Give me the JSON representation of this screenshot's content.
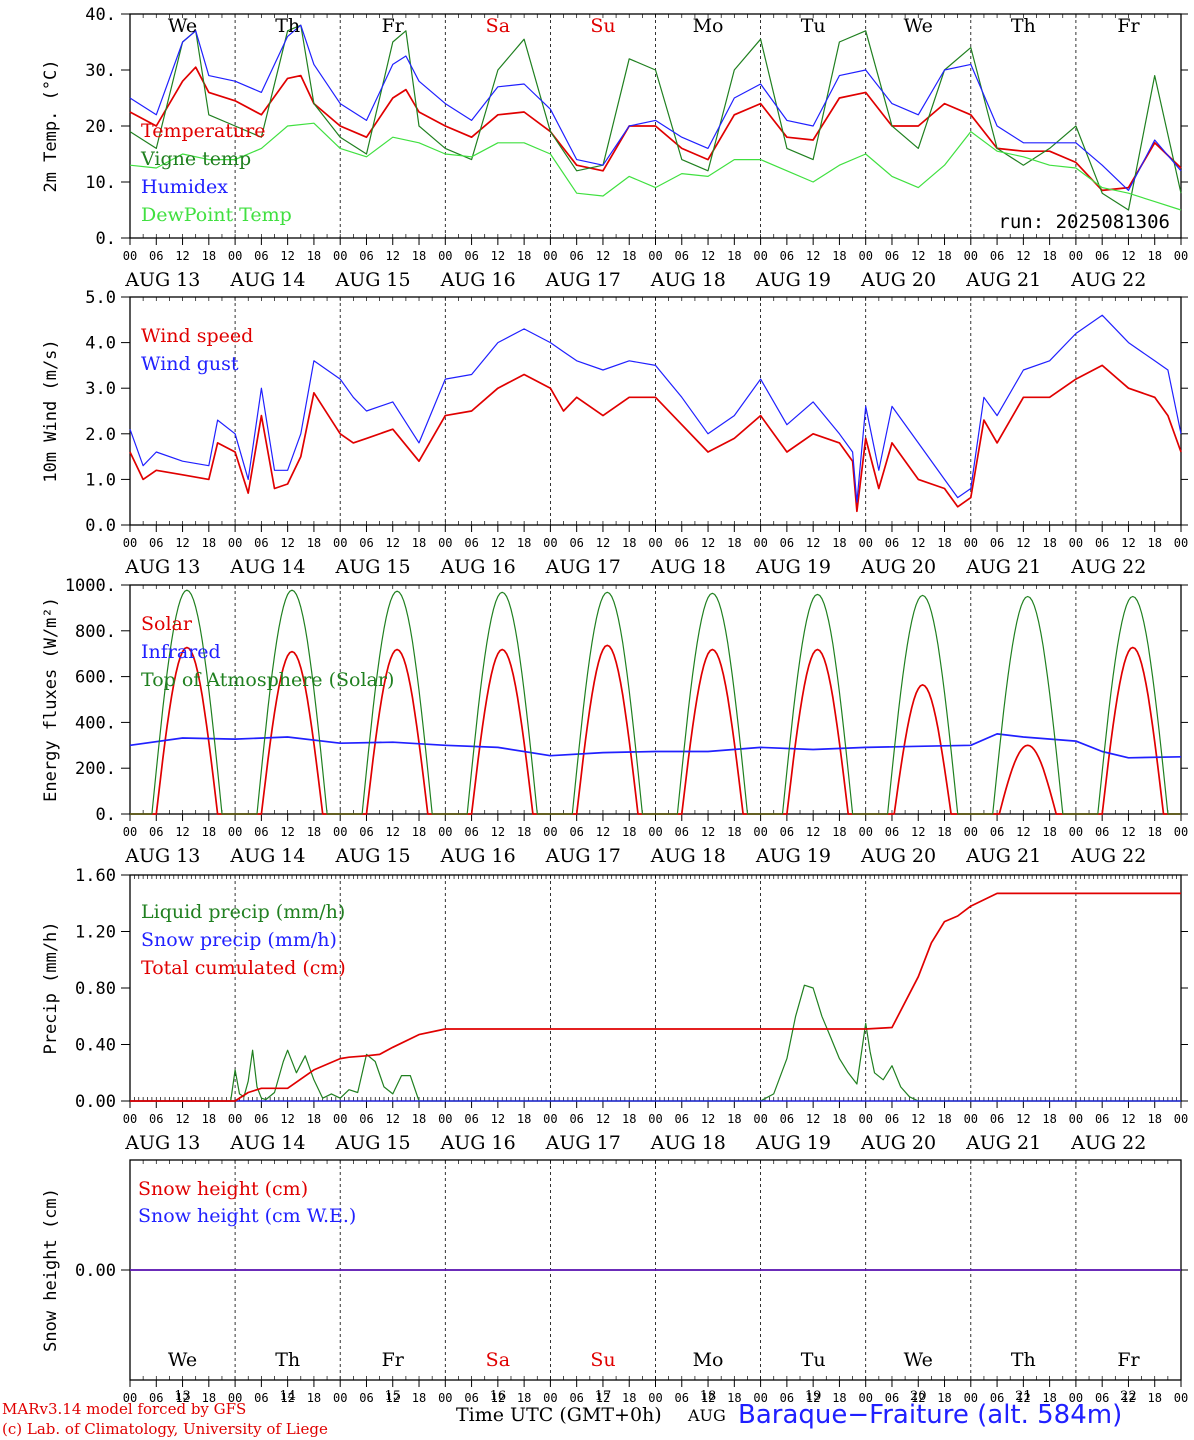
{
  "run_label": "run: 2025081306",
  "footer": {
    "model": "MARv3.14 model forced by GFS",
    "credit": "(c) Lab. of Climatology, University of Liege",
    "time_label": "Time UTC (GMT+0h)",
    "month": "AUG",
    "site": "Baraque−Fraiture (alt. 584m)"
  },
  "colors": {
    "red": "#e00000",
    "blue": "#2020ff",
    "green": "#208020",
    "lightgreen": "#40e040",
    "weekend": "#e00000"
  },
  "days": {
    "names": [
      "We",
      "Th",
      "Fr",
      "Sa",
      "Su",
      "Mo",
      "Tu",
      "We",
      "Th",
      "Fr"
    ],
    "weekend": [
      false,
      false,
      false,
      true,
      true,
      false,
      false,
      false,
      false,
      false
    ],
    "dates": [
      "AUG 13",
      "AUG 14",
      "AUG 15",
      "AUG 16",
      "AUG 17",
      "AUG 18",
      "AUG 19",
      "AUG 20",
      "AUG 21",
      "AUG 22"
    ],
    "numbers": [
      "13",
      "14",
      "15",
      "16",
      "17",
      "18",
      "19",
      "20",
      "21",
      "22"
    ],
    "hour_ticks": [
      "00",
      "06",
      "12",
      "18"
    ],
    "final_tick": "00"
  },
  "chart_data": [
    {
      "type": "line",
      "ylabel": "2m Temp. (°C)",
      "ylim": [
        0,
        40
      ],
      "yticks": [
        "0.",
        "10.",
        "20.",
        "30.",
        "40."
      ],
      "x_unit": "hours since AUG 13 00 UTC",
      "series": [
        {
          "name": "Temperature",
          "color": "red",
          "x": [
            0,
            6,
            12,
            15,
            18,
            24,
            30,
            36,
            39,
            42,
            48,
            54,
            60,
            63,
            66,
            72,
            78,
            84,
            90,
            96,
            102,
            108,
            114,
            120,
            126,
            132,
            138,
            144,
            150,
            156,
            162,
            168,
            174,
            180,
            186,
            192,
            198,
            204,
            210,
            216,
            222,
            228,
            234,
            240
          ],
          "y": [
            22.5,
            20,
            28,
            30.5,
            26,
            24.5,
            22,
            28.5,
            29,
            24,
            20,
            18,
            25,
            26.5,
            22.5,
            20,
            18,
            22,
            22.5,
            19,
            13,
            12,
            20,
            20,
            16,
            14,
            22,
            24,
            18,
            17.5,
            25,
            26,
            20,
            20,
            24,
            22,
            16,
            15.5,
            15.5,
            13.5,
            8.5,
            9,
            17,
            12.5
          ]
        },
        {
          "name": "Vigne temp",
          "color": "green",
          "x": [
            0,
            6,
            12,
            15,
            18,
            24,
            30,
            36,
            39,
            42,
            48,
            54,
            60,
            63,
            66,
            72,
            78,
            84,
            90,
            96,
            102,
            108,
            114,
            120,
            126,
            132,
            138,
            144,
            150,
            156,
            162,
            168,
            174,
            180,
            186,
            192,
            198,
            204,
            210,
            216,
            222,
            228,
            234,
            240
          ],
          "y": [
            19,
            16,
            35,
            37,
            22,
            20,
            18,
            37,
            38,
            24,
            18,
            15,
            35,
            37,
            20,
            16,
            14,
            30,
            35.5,
            19,
            12,
            13,
            32,
            30,
            14,
            12,
            30,
            35.5,
            16,
            14,
            35,
            37,
            20,
            16,
            30,
            34,
            16,
            13,
            16,
            20,
            8,
            5,
            29,
            8
          ]
        },
        {
          "name": "Humidex",
          "color": "blue",
          "x": [
            0,
            6,
            12,
            15,
            18,
            24,
            30,
            36,
            39,
            42,
            48,
            54,
            60,
            63,
            66,
            72,
            78,
            84,
            90,
            96,
            102,
            108,
            114,
            120,
            126,
            132,
            138,
            144,
            150,
            156,
            162,
            168,
            174,
            180,
            186,
            192,
            198,
            204,
            210,
            216,
            222,
            228,
            234,
            240
          ],
          "y": [
            25,
            22,
            35,
            37,
            29,
            28,
            26,
            36,
            38,
            31,
            24,
            21,
            31,
            32.5,
            28,
            24,
            21,
            27,
            27.5,
            23,
            14,
            13,
            20,
            21,
            18,
            16,
            25,
            27.5,
            21,
            20,
            29,
            30,
            24,
            22,
            30,
            31,
            20,
            17,
            17,
            17,
            13,
            8.5,
            17.5,
            12
          ]
        },
        {
          "name": "DewPoint Temp",
          "color": "lightgreen",
          "x": [
            0,
            6,
            12,
            18,
            24,
            30,
            36,
            42,
            48,
            54,
            60,
            66,
            72,
            78,
            84,
            90,
            96,
            102,
            108,
            114,
            120,
            126,
            132,
            138,
            144,
            150,
            156,
            162,
            168,
            174,
            180,
            186,
            192,
            198,
            204,
            210,
            216,
            222,
            228,
            234,
            240
          ],
          "y": [
            13,
            12.5,
            15,
            14,
            14,
            16,
            20,
            20.5,
            16,
            14.5,
            18,
            17,
            15,
            14.5,
            17,
            17,
            15,
            8,
            7.5,
            11,
            9,
            11.5,
            11,
            14,
            14,
            12,
            10,
            13,
            15,
            11,
            9,
            13,
            19,
            15.5,
            14.5,
            13,
            12.5,
            9,
            8,
            6.5,
            5
          ]
        }
      ]
    },
    {
      "type": "line",
      "ylabel": "10m Wind (m/s)",
      "ylim": [
        0,
        5
      ],
      "yticks": [
        "0.0",
        "1.0",
        "2.0",
        "3.0",
        "4.0",
        "5.0"
      ],
      "x_unit": "hours since AUG 13 00 UTC",
      "series": [
        {
          "name": "Wind speed",
          "color": "red",
          "x": [
            0,
            3,
            6,
            12,
            18,
            20,
            24,
            27,
            30,
            33,
            36,
            39,
            42,
            48,
            51,
            54,
            60,
            66,
            72,
            78,
            84,
            90,
            96,
            99,
            102,
            108,
            114,
            120,
            126,
            132,
            138,
            144,
            150,
            156,
            162,
            165,
            166,
            168,
            171,
            174,
            180,
            186,
            189,
            192,
            195,
            198,
            204,
            210,
            216,
            222,
            228,
            234,
            237,
            240
          ],
          "y": [
            1.6,
            1.0,
            1.2,
            1.1,
            1.0,
            1.8,
            1.6,
            0.7,
            2.4,
            0.8,
            0.9,
            1.5,
            2.9,
            2.0,
            1.8,
            1.9,
            2.1,
            1.4,
            2.4,
            2.5,
            3.0,
            3.3,
            3.0,
            2.5,
            2.8,
            2.4,
            2.8,
            2.8,
            2.2,
            1.6,
            1.9,
            2.4,
            1.6,
            2.0,
            1.8,
            1.4,
            0.3,
            1.9,
            0.8,
            1.8,
            1.0,
            0.8,
            0.4,
            0.6,
            2.3,
            1.8,
            2.8,
            2.8,
            3.2,
            3.5,
            3.0,
            2.8,
            2.4,
            1.6
          ]
        },
        {
          "name": "Wind gust",
          "color": "blue",
          "x": [
            0,
            3,
            6,
            12,
            18,
            20,
            24,
            27,
            30,
            33,
            36,
            39,
            42,
            48,
            51,
            54,
            60,
            66,
            72,
            78,
            84,
            90,
            96,
            99,
            102,
            108,
            114,
            120,
            126,
            132,
            138,
            144,
            150,
            156,
            162,
            165,
            166,
            168,
            171,
            174,
            180,
            186,
            189,
            192,
            195,
            198,
            204,
            210,
            216,
            222,
            228,
            234,
            237,
            240
          ],
          "y": [
            2.1,
            1.3,
            1.6,
            1.4,
            1.3,
            2.3,
            2.0,
            1.0,
            3.0,
            1.2,
            1.2,
            2.0,
            3.6,
            3.2,
            2.8,
            2.5,
            2.7,
            1.8,
            3.2,
            3.3,
            4.0,
            4.3,
            4.0,
            3.8,
            3.6,
            3.4,
            3.6,
            3.5,
            2.8,
            2.0,
            2.4,
            3.2,
            2.2,
            2.7,
            2.0,
            1.6,
            0.5,
            2.6,
            1.2,
            2.6,
            1.8,
            1.0,
            0.6,
            0.8,
            2.8,
            2.4,
            3.4,
            3.6,
            4.2,
            4.6,
            4.0,
            3.6,
            3.4,
            2.0
          ]
        }
      ]
    },
    {
      "type": "line",
      "ylabel": "Energy fluxes (W/m²)",
      "ylim": [
        0,
        1100
      ],
      "yticks": [
        "0.",
        "200.",
        "400.",
        "600.",
        "800.",
        "1000."
      ],
      "x_unit": "hours since AUG 13 00 UTC",
      "diurnal": true,
      "series": [
        {
          "name": "Solar",
          "color": "red",
          "day_peaks": [
            800,
            780,
            790,
            790,
            810,
            790,
            790,
            620,
            330,
            800
          ],
          "day_halfwidth_h": [
            7,
            7,
            7,
            7,
            7,
            7,
            7,
            6.5,
            6.5,
            7
          ],
          "day_center_h": 13
        },
        {
          "name": "Infrared",
          "color": "blue",
          "x": [
            0,
            12,
            24,
            36,
            48,
            60,
            72,
            84,
            96,
            108,
            120,
            132,
            144,
            156,
            168,
            180,
            192,
            198,
            204,
            216,
            222,
            228,
            240
          ],
          "y": [
            330,
            365,
            360,
            370,
            340,
            345,
            330,
            320,
            280,
            295,
            300,
            300,
            320,
            310,
            320,
            325,
            330,
            385,
            370,
            350,
            300,
            270,
            275
          ]
        },
        {
          "name": "Top of Atmosphere (Solar)",
          "color": "green",
          "day_peaks": [
            1075,
            1075,
            1070,
            1065,
            1065,
            1060,
            1055,
            1050,
            1045,
            1045
          ],
          "day_halfwidth_h": [
            8,
            8,
            8,
            8,
            8,
            8,
            8,
            8,
            8,
            8
          ],
          "day_center_h": 13
        }
      ]
    },
    {
      "type": "line",
      "ylabel": "Precip (mm/h)",
      "ylim": [
        0,
        1.6
      ],
      "yticks": [
        "0.00",
        "0.40",
        "0.80",
        "1.20",
        "1.60"
      ],
      "x_unit": "hours since AUG 13 00 UTC",
      "series": [
        {
          "name": "Liquid precip (mm/h)",
          "color": "green",
          "x": [
            0,
            23,
            24,
            25,
            26,
            27,
            28,
            29,
            30,
            31,
            33,
            35,
            36,
            38,
            40,
            42,
            44,
            46,
            48,
            50,
            52,
            54,
            56,
            58,
            60,
            62,
            64,
            66,
            70,
            144,
            147,
            150,
            152,
            154,
            156,
            157,
            158,
            160,
            162,
            164,
            166,
            168,
            169,
            170,
            172,
            174,
            176,
            178,
            180,
            240
          ],
          "y": [
            0,
            0,
            0.22,
            0.05,
            0.03,
            0.14,
            0.36,
            0.1,
            0.02,
            0.01,
            0.06,
            0.28,
            0.36,
            0.2,
            0.32,
            0.15,
            0.02,
            0.05,
            0.02,
            0.08,
            0.06,
            0.33,
            0.28,
            0.1,
            0.05,
            0.18,
            0.18,
            0.0,
            0,
            0,
            0.05,
            0.3,
            0.6,
            0.82,
            0.8,
            0.7,
            0.6,
            0.45,
            0.3,
            0.2,
            0.12,
            0.55,
            0.35,
            0.2,
            0.15,
            0.25,
            0.1,
            0.03,
            0,
            0
          ]
        },
        {
          "name": "Snow precip (mm/h)",
          "color": "blue",
          "x": [
            0,
            240
          ],
          "y": [
            0,
            0
          ]
        },
        {
          "name": "Total cumulated (cm)",
          "color": "red",
          "x": [
            0,
            24,
            27,
            30,
            36,
            42,
            48,
            50,
            54,
            57,
            60,
            66,
            72,
            168,
            174,
            180,
            183,
            186,
            189,
            192,
            198,
            204,
            240
          ],
          "y": [
            0,
            0,
            0.06,
            0.09,
            0.09,
            0.22,
            0.3,
            0.31,
            0.32,
            0.33,
            0.38,
            0.47,
            0.51,
            0.51,
            0.52,
            0.88,
            1.12,
            1.27,
            1.31,
            1.38,
            1.47,
            1.47,
            1.47
          ]
        }
      ]
    },
    {
      "type": "line",
      "ylabel": "Snow height (cm)",
      "ylim": [
        -1,
        1
      ],
      "yticks": [
        "0.00"
      ],
      "x_unit": "hours since AUG 13 00 UTC",
      "series": [
        {
          "name": "Snow height (cm)",
          "color": "red",
          "x": [
            0,
            240
          ],
          "y": [
            0,
            0
          ]
        },
        {
          "name": "Snow height (cm W.E.)",
          "color": "blue",
          "x": [
            0,
            240
          ],
          "y": [
            0,
            0
          ]
        }
      ]
    }
  ]
}
